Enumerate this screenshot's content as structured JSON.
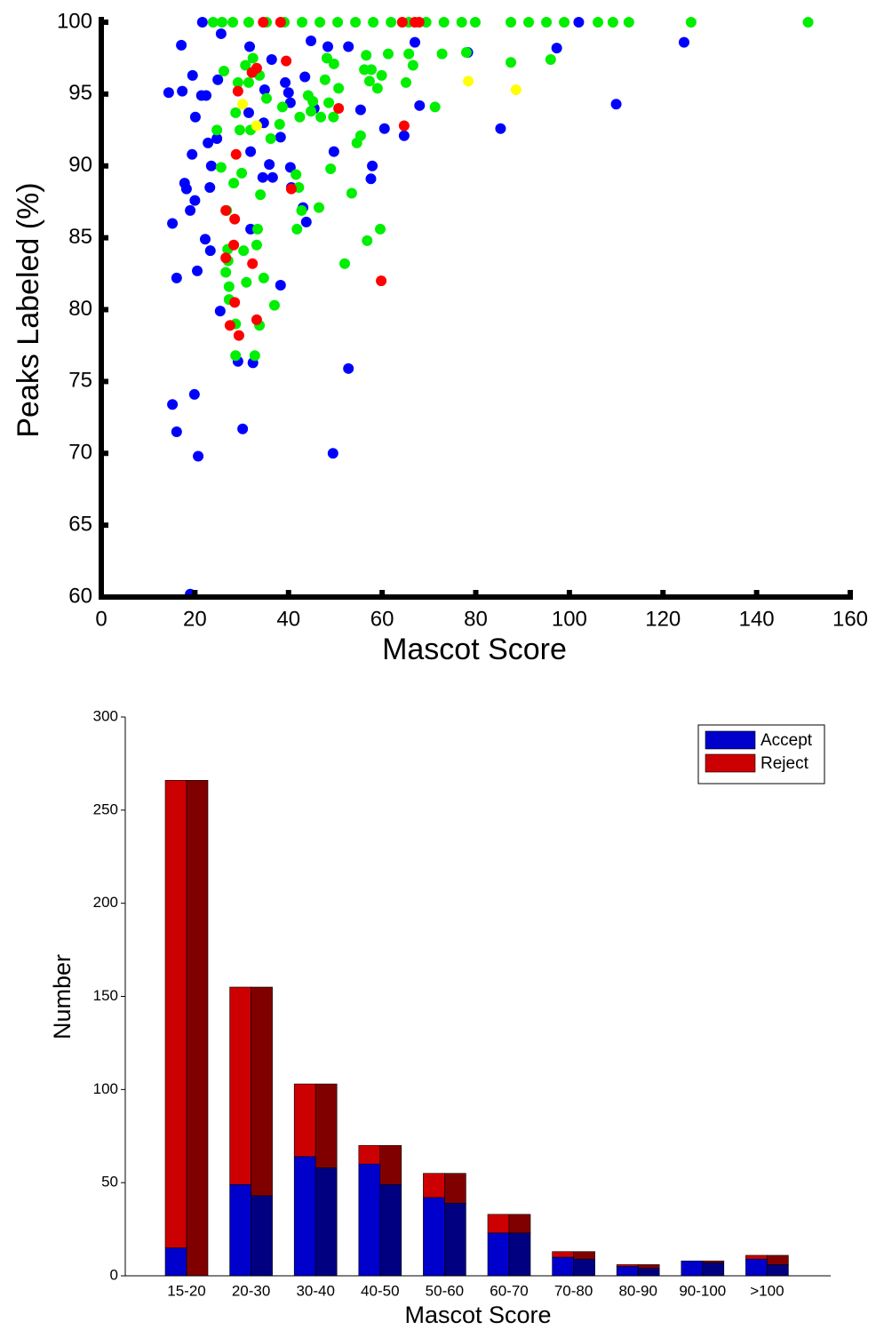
{
  "chart_data": [
    {
      "type": "scatter",
      "x_label": "Mascot Score",
      "y_label": "Peaks Labeled (%)",
      "xlim": [
        0,
        160
      ],
      "xticks": [
        0,
        20,
        40,
        60,
        80,
        100,
        120,
        140,
        160
      ],
      "ylim": [
        60,
        100
      ],
      "yticks": [
        60,
        65,
        70,
        75,
        80,
        85,
        90,
        95,
        100
      ],
      "grid": false,
      "series": [
        {
          "color": "#0000ff",
          "x": [
            21.6,
            14.4,
            17.1,
            17.3,
            19.5,
            20.1,
            21.4,
            22.4,
            19.4,
            22.8,
            23.5,
            24.7,
            24.9,
            25.6,
            17.8,
            18.2,
            20.0,
            19.0,
            15.2,
            23.2,
            22.2,
            23.3,
            16.1,
            20.5,
            25.4,
            31.7,
            31.5,
            31.9,
            31.9,
            29.2,
            32.4,
            15.2,
            16.1,
            19.9,
            30.2,
            20.7,
            19.0,
            34.9,
            34.7,
            35.9,
            34.5,
            36.6,
            36.4,
            38.3,
            39.3,
            40.0,
            40.4,
            40.4,
            40.6,
            43.1,
            43.8,
            43.5,
            44.8,
            45.5,
            48.4,
            49.7,
            52.8,
            55.4,
            57.9,
            57.6,
            60.5,
            49.5,
            52.8,
            38.3,
            64.7,
            68.0,
            67.0,
            78.3,
            85.3,
            97.3,
            102,
            110,
            124.5
          ],
          "values": [
            100,
            95.1,
            98.4,
            95.2,
            96.3,
            93.4,
            94.9,
            94.9,
            90.8,
            91.6,
            90.0,
            91.9,
            96.0,
            99.2,
            88.8,
            88.4,
            87.6,
            86.9,
            86.0,
            88.5,
            84.9,
            84.1,
            82.2,
            82.7,
            79.9,
            98.3,
            93.7,
            91.0,
            85.6,
            76.4,
            76.3,
            73.4,
            71.5,
            74.1,
            71.7,
            69.8,
            60.2,
            95.3,
            93.0,
            90.1,
            89.2,
            89.2,
            97.4,
            92.0,
            95.8,
            95.1,
            94.4,
            89.9,
            88.5,
            87.1,
            86.1,
            96.2,
            98.7,
            94.0,
            98.3,
            91.0,
            98.3,
            93.9,
            90.0,
            89.1,
            92.6,
            70.0,
            75.9,
            81.7,
            92.1,
            94.2,
            98.6,
            97.9,
            92.6,
            98.2,
            100,
            94.3,
            98.6
          ]
        },
        {
          "color": "#00ee00",
          "x": [
            23.9,
            25.8,
            28.1,
            31.5,
            35.3,
            39.1,
            42.9,
            46.7,
            50.5,
            54.3,
            58.1,
            61.9,
            65.7,
            69.4,
            73.2,
            77,
            79.9,
            87.5,
            91.3,
            95.1,
            98.9,
            106.1,
            109.3,
            112.7,
            126,
            151,
            26.2,
            24.7,
            25.6,
            26.8,
            27.0,
            27.1,
            26.6,
            27.3,
            27.3,
            28.7,
            28.7,
            28.3,
            28.7,
            29.2,
            29.6,
            30.0,
            30.4,
            31.0,
            30.8,
            31.5,
            31.9,
            32.4,
            33.2,
            33.4,
            32.8,
            33.8,
            34.0,
            34.7,
            33.8,
            35.3,
            36.2,
            37.0,
            38.1,
            38.7,
            41.6,
            41.8,
            42.2,
            42.4,
            42.8,
            44.2,
            44.8,
            45.2,
            46.5,
            46.9,
            47.8,
            48.2,
            48.6,
            49.0,
            49.6,
            49.7,
            50.7,
            52.0,
            53.5,
            54.6,
            55.4,
            56.2,
            56.6,
            57.7,
            56.8,
            57.3,
            59.0,
            59.9,
            59.6,
            61.3,
            65.7,
            65.1,
            66.6,
            71.3,
            72.8,
            78.0,
            87.5,
            96.0
          ],
          "values": [
            100,
            100,
            100,
            100,
            100,
            100,
            100,
            100,
            100,
            100,
            100,
            100,
            100,
            100,
            100,
            100,
            100,
            100,
            100,
            100,
            100,
            100,
            100,
            100,
            100,
            100,
            96.6,
            92.5,
            89.9,
            86.9,
            84.2,
            83.4,
            82.6,
            81.6,
            80.7,
            79.0,
            76.8,
            88.8,
            93.7,
            95.8,
            92.5,
            89.5,
            84.1,
            81.9,
            97.0,
            95.8,
            92.5,
            97.5,
            84.5,
            85.6,
            76.8,
            78.9,
            88.0,
            82.2,
            96.3,
            94.7,
            91.9,
            80.3,
            92.9,
            94.1,
            89.4,
            85.6,
            88.5,
            93.4,
            86.9,
            94.9,
            93.8,
            94.5,
            87.1,
            93.4,
            96.0,
            97.5,
            94.4,
            89.8,
            93.4,
            97.1,
            95.4,
            83.2,
            88.1,
            91.6,
            92.1,
            96.7,
            97.7,
            96.7,
            84.8,
            95.9,
            95.4,
            96.3,
            85.6,
            97.8,
            97.8,
            95.8,
            97.0,
            94.1,
            97.8,
            97.9,
            97.2,
            97.4
          ]
        },
        {
          "color": "#ff0000",
          "x": [
            34.6,
            38.3,
            64.3,
            67.0,
            67.9,
            29.2,
            32.2,
            33.2,
            39.5,
            28.8,
            26.6,
            28.5,
            28.3,
            26.6,
            32.3,
            28.5,
            27.5,
            29.4,
            33.2,
            40.6,
            50.7,
            64.7,
            59.8
          ],
          "values": [
            100,
            100,
            100,
            100,
            100,
            95.2,
            96.5,
            96.8,
            97.3,
            90.8,
            86.9,
            86.3,
            84.5,
            83.6,
            83.2,
            80.5,
            78.9,
            78.2,
            79.3,
            88.4,
            94.0,
            92.8,
            82.0
          ]
        },
        {
          "color": "#ffff00",
          "x": [
            30.2,
            33.2,
            78.4,
            88.6
          ],
          "values": [
            94.3,
            92.8,
            95.9,
            95.3
          ]
        }
      ]
    },
    {
      "type": "bar",
      "stacked": true,
      "x_label": "Mascot Score",
      "y_label": "Number",
      "categories": [
        "15-20",
        "20-30",
        "30-40",
        "40-50",
        "50-60",
        "60-70",
        "70-80",
        "80-90",
        "90-100",
        ">100"
      ],
      "ylim": [
        0,
        300
      ],
      "yticks": [
        0,
        50,
        100,
        150,
        200,
        250,
        300
      ],
      "grid": false,
      "legend": "upper right",
      "series": [
        {
          "name": "Accept",
          "color": "#0000cc",
          "group": 0,
          "values": [
            15,
            49,
            64,
            60,
            42,
            23,
            10,
            5,
            8,
            9
          ]
        },
        {
          "name": "Reject",
          "color": "#cc0000",
          "group": 0,
          "values": [
            251,
            106,
            39,
            10,
            13,
            10,
            3,
            1,
            0,
            2
          ]
        },
        {
          "color": "#000080",
          "group": 1,
          "values": [
            0,
            43,
            58,
            49,
            39,
            23,
            9,
            4,
            7,
            6
          ]
        },
        {
          "color": "#800000",
          "group": 1,
          "values": [
            266,
            112,
            45,
            21,
            16,
            10,
            4,
            2,
            1,
            5
          ]
        }
      ]
    }
  ]
}
